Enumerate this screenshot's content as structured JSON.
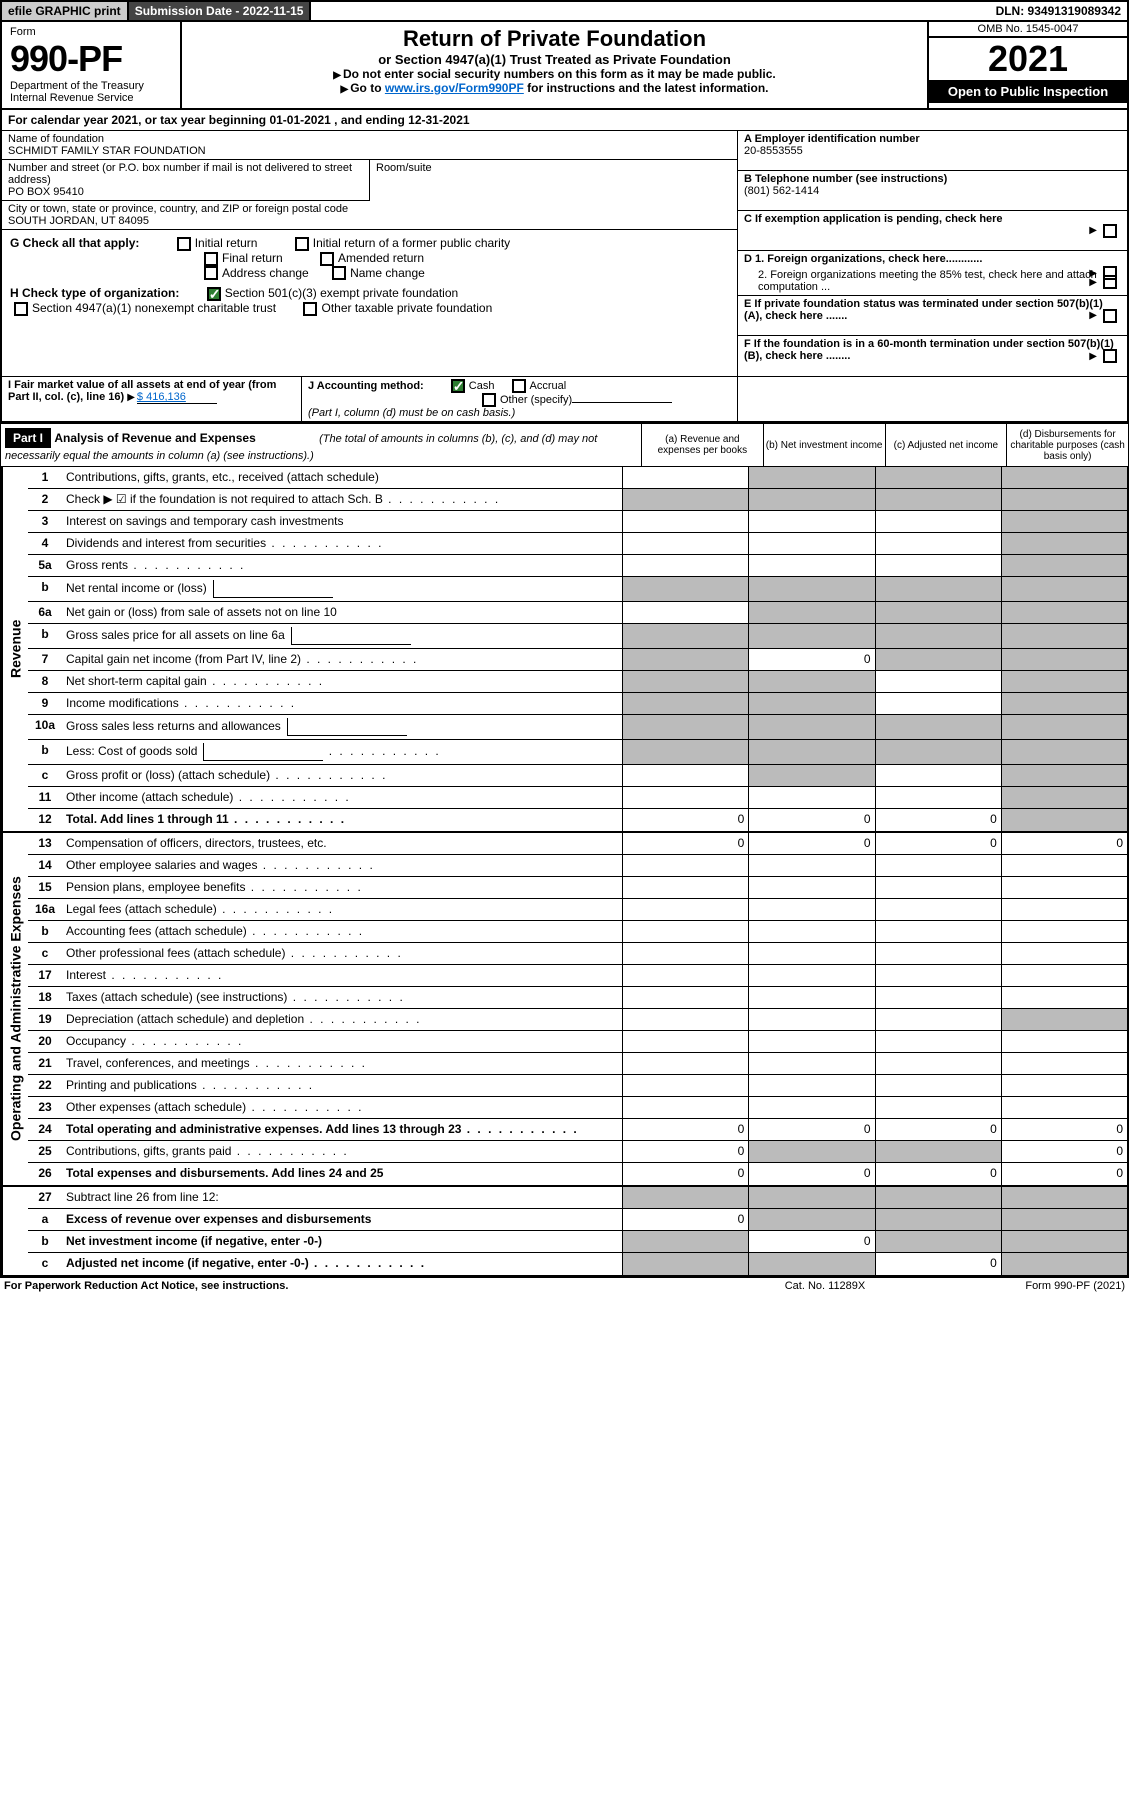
{
  "topbar": {
    "efile": "efile GRAPHIC print",
    "submission": "Submission Date - 2022-11-15",
    "dln": "DLN: 93491319089342"
  },
  "header": {
    "form_label": "Form",
    "form_number": "990-PF",
    "dept1": "Department of the Treasury",
    "dept2": "Internal Revenue Service",
    "title": "Return of Private Foundation",
    "subtitle": "or Section 4947(a)(1) Trust Treated as Private Foundation",
    "instr1": "Do not enter social security numbers on this form as it may be made public.",
    "instr2_pre": "Go to ",
    "instr2_link": "www.irs.gov/Form990PF",
    "instr2_post": " for instructions and the latest information.",
    "omb": "OMB No. 1545-0047",
    "year": "2021",
    "open_public": "Open to Public Inspection"
  },
  "calendar_year": "For calendar year 2021, or tax year beginning 01-01-2021        , and ending 12-31-2021",
  "info": {
    "name_label": "Name of foundation",
    "name": "SCHMIDT FAMILY STAR FOUNDATION",
    "street_label": "Number and street (or P.O. box number if mail is not delivered to street address)",
    "street": "PO BOX 95410",
    "room_label": "Room/suite",
    "city_label": "City or town, state or province, country, and ZIP or foreign postal code",
    "city": "SOUTH JORDAN, UT  84095",
    "a_label": "A Employer identification number",
    "a_val": "20-8553555",
    "b_label": "B Telephone number (see instructions)",
    "b_val": "(801) 562-1414",
    "c_label": "C If exemption application is pending, check here",
    "d1_label": "D 1. Foreign organizations, check here............",
    "d2_label": "2. Foreign organizations meeting the 85% test, check here and attach computation ...",
    "e_label": "E  If private foundation status was terminated under section 507(b)(1)(A), check here .......",
    "f_label": "F  If the foundation is in a 60-month termination under section 507(b)(1)(B), check here ........"
  },
  "checks": {
    "g_label": "G Check all that apply:",
    "g_items": [
      "Initial return",
      "Initial return of a former public charity",
      "Final return",
      "Amended return",
      "Address change",
      "Name change"
    ],
    "h_label": "H Check type of organization:",
    "h1": "Section 501(c)(3) exempt private foundation",
    "h2": "Section 4947(a)(1) nonexempt charitable trust",
    "h3": "Other taxable private foundation",
    "i_label": "I Fair market value of all assets at end of year (from Part II, col. (c), line 16)",
    "i_val": "$ 416,136",
    "j_label": "J Accounting method:",
    "j_items": [
      "Cash",
      "Accrual"
    ],
    "j_other": "Other (specify)",
    "j_note": "(Part I, column (d) must be on cash basis.)"
  },
  "part1": {
    "label": "Part I",
    "title": "Analysis of Revenue and Expenses",
    "note": "(The total of amounts in columns (b), (c), and (d) may not necessarily equal the amounts in column (a) (see instructions).)",
    "cols": {
      "a": "(a)  Revenue and expenses per books",
      "b": "(b)  Net investment income",
      "c": "(c)  Adjusted net income",
      "d": "(d)  Disbursements for charitable purposes (cash basis only)"
    }
  },
  "sections": {
    "revenue": "Revenue",
    "expenses": "Operating and Administrative Expenses"
  },
  "revenue_lines": [
    {
      "num": "1",
      "desc": "Contributions, gifts, grants, etc., received (attach schedule)",
      "a": "",
      "b": "shaded",
      "c": "shaded",
      "d": "shaded"
    },
    {
      "num": "2",
      "desc": "Check ▶ ☑ if the foundation is not required to attach Sch. B",
      "a": "shaded",
      "b": "shaded",
      "c": "shaded",
      "d": "shaded",
      "dots": true
    },
    {
      "num": "3",
      "desc": "Interest on savings and temporary cash investments",
      "a": "",
      "b": "",
      "c": "",
      "d": "shaded"
    },
    {
      "num": "4",
      "desc": "Dividends and interest from securities",
      "a": "",
      "b": "",
      "c": "",
      "d": "shaded",
      "dots": true
    },
    {
      "num": "5a",
      "desc": "Gross rents",
      "a": "",
      "b": "",
      "c": "",
      "d": "shaded",
      "dots": true
    },
    {
      "num": "b",
      "desc": "Net rental income or (loss)",
      "a": "shaded",
      "b": "shaded",
      "c": "shaded",
      "d": "shaded",
      "box": true
    },
    {
      "num": "6a",
      "desc": "Net gain or (loss) from sale of assets not on line 10",
      "a": "",
      "b": "shaded",
      "c": "shaded",
      "d": "shaded"
    },
    {
      "num": "b",
      "desc": "Gross sales price for all assets on line 6a",
      "a": "shaded",
      "b": "shaded",
      "c": "shaded",
      "d": "shaded",
      "box": true
    },
    {
      "num": "7",
      "desc": "Capital gain net income (from Part IV, line 2)",
      "a": "shaded",
      "b": "0",
      "c": "shaded",
      "d": "shaded",
      "dots": true
    },
    {
      "num": "8",
      "desc": "Net short-term capital gain",
      "a": "shaded",
      "b": "shaded",
      "c": "",
      "d": "shaded",
      "dots": true
    },
    {
      "num": "9",
      "desc": "Income modifications",
      "a": "shaded",
      "b": "shaded",
      "c": "",
      "d": "shaded",
      "dots": true
    },
    {
      "num": "10a",
      "desc": "Gross sales less returns and allowances",
      "a": "shaded",
      "b": "shaded",
      "c": "shaded",
      "d": "shaded",
      "box": true
    },
    {
      "num": "b",
      "desc": "Less: Cost of goods sold",
      "a": "shaded",
      "b": "shaded",
      "c": "shaded",
      "d": "shaded",
      "dots": true,
      "box": true
    },
    {
      "num": "c",
      "desc": "Gross profit or (loss) (attach schedule)",
      "a": "",
      "b": "shaded",
      "c": "",
      "d": "shaded",
      "dots": true
    },
    {
      "num": "11",
      "desc": "Other income (attach schedule)",
      "a": "",
      "b": "",
      "c": "",
      "d": "shaded",
      "dots": true
    },
    {
      "num": "12",
      "desc": "Total. Add lines 1 through 11",
      "a": "0",
      "b": "0",
      "c": "0",
      "d": "shaded",
      "dots": true,
      "bold": true
    }
  ],
  "expense_lines": [
    {
      "num": "13",
      "desc": "Compensation of officers, directors, trustees, etc.",
      "a": "0",
      "b": "0",
      "c": "0",
      "d": "0"
    },
    {
      "num": "14",
      "desc": "Other employee salaries and wages",
      "a": "",
      "b": "",
      "c": "",
      "d": "",
      "dots": true
    },
    {
      "num": "15",
      "desc": "Pension plans, employee benefits",
      "a": "",
      "b": "",
      "c": "",
      "d": "",
      "dots": true
    },
    {
      "num": "16a",
      "desc": "Legal fees (attach schedule)",
      "a": "",
      "b": "",
      "c": "",
      "d": "",
      "dots": true
    },
    {
      "num": "b",
      "desc": "Accounting fees (attach schedule)",
      "a": "",
      "b": "",
      "c": "",
      "d": "",
      "dots": true
    },
    {
      "num": "c",
      "desc": "Other professional fees (attach schedule)",
      "a": "",
      "b": "",
      "c": "",
      "d": "",
      "dots": true
    },
    {
      "num": "17",
      "desc": "Interest",
      "a": "",
      "b": "",
      "c": "",
      "d": "",
      "dots": true
    },
    {
      "num": "18",
      "desc": "Taxes (attach schedule) (see instructions)",
      "a": "",
      "b": "",
      "c": "",
      "d": "",
      "dots": true
    },
    {
      "num": "19",
      "desc": "Depreciation (attach schedule) and depletion",
      "a": "",
      "b": "",
      "c": "",
      "d": "shaded",
      "dots": true
    },
    {
      "num": "20",
      "desc": "Occupancy",
      "a": "",
      "b": "",
      "c": "",
      "d": "",
      "dots": true
    },
    {
      "num": "21",
      "desc": "Travel, conferences, and meetings",
      "a": "",
      "b": "",
      "c": "",
      "d": "",
      "dots": true
    },
    {
      "num": "22",
      "desc": "Printing and publications",
      "a": "",
      "b": "",
      "c": "",
      "d": "",
      "dots": true
    },
    {
      "num": "23",
      "desc": "Other expenses (attach schedule)",
      "a": "",
      "b": "",
      "c": "",
      "d": "",
      "dots": true
    },
    {
      "num": "24",
      "desc": "Total operating and administrative expenses. Add lines 13 through 23",
      "a": "0",
      "b": "0",
      "c": "0",
      "d": "0",
      "dots": true,
      "bold": true
    },
    {
      "num": "25",
      "desc": "Contributions, gifts, grants paid",
      "a": "0",
      "b": "shaded",
      "c": "shaded",
      "d": "0",
      "dots": true
    },
    {
      "num": "26",
      "desc": "Total expenses and disbursements. Add lines 24 and 25",
      "a": "0",
      "b": "0",
      "c": "0",
      "d": "0",
      "bold": true
    }
  ],
  "bottom_lines": [
    {
      "num": "27",
      "desc": "Subtract line 26 from line 12:",
      "a": "shaded",
      "b": "shaded",
      "c": "shaded",
      "d": "shaded"
    },
    {
      "num": "a",
      "desc": "Excess of revenue over expenses and disbursements",
      "a": "0",
      "b": "shaded",
      "c": "shaded",
      "d": "shaded",
      "bold": true
    },
    {
      "num": "b",
      "desc": "Net investment income (if negative, enter -0-)",
      "a": "shaded",
      "b": "0",
      "c": "shaded",
      "d": "shaded",
      "bold": true
    },
    {
      "num": "c",
      "desc": "Adjusted net income (if negative, enter -0-)",
      "a": "shaded",
      "b": "shaded",
      "c": "0",
      "d": "shaded",
      "bold": true,
      "dots": true
    }
  ],
  "footer": {
    "left": "For Paperwork Reduction Act Notice, see instructions.",
    "center": "Cat. No. 11289X",
    "right": "Form 990-PF (2021)"
  }
}
